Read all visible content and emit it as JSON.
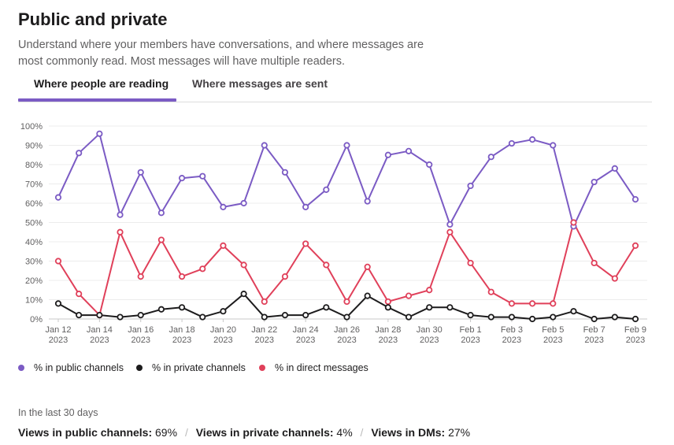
{
  "header": {
    "title": "Public and private",
    "description": "Understand where your members have conversations, and where messages are most commonly read. Most messages will have multiple readers."
  },
  "tabs": [
    {
      "label": "Where people are reading",
      "active": true
    },
    {
      "label": "Where messages are sent",
      "active": false
    }
  ],
  "colors": {
    "accent": "#7b5bc4",
    "public": "#7b5bc4",
    "private": "#1d1c1d",
    "direct": "#e0405a"
  },
  "chart_data": {
    "type": "line",
    "title": "",
    "xlabel": "",
    "ylabel": "",
    "ylim": [
      0,
      100
    ],
    "y_ticks": [
      "0%",
      "10%",
      "20%",
      "30%",
      "40%",
      "50%",
      "60%",
      "70%",
      "80%",
      "90%",
      "100%"
    ],
    "grid": true,
    "legend_position": "bottom",
    "x": [
      "Jan 12 2023",
      "Jan 13 2023",
      "Jan 14 2023",
      "Jan 15 2023",
      "Jan 16 2023",
      "Jan 17 2023",
      "Jan 18 2023",
      "Jan 19 2023",
      "Jan 20 2023",
      "Jan 21 2023",
      "Jan 22 2023",
      "Jan 23 2023",
      "Jan 24 2023",
      "Jan 25 2023",
      "Jan 26 2023",
      "Jan 27 2023",
      "Jan 28 2023",
      "Jan 29 2023",
      "Jan 30 2023",
      "Jan 31 2023",
      "Feb 1 2023",
      "Feb 2 2023",
      "Feb 3 2023",
      "Feb 4 2023",
      "Feb 5 2023",
      "Feb 6 2023",
      "Feb 7 2023",
      "Feb 8 2023",
      "Feb 9 2023"
    ],
    "x_tick_labels": [
      {
        "line1": "Jan 12",
        "line2": "2023"
      },
      {
        "line1": "Jan 14",
        "line2": "2023"
      },
      {
        "line1": "Jan 16",
        "line2": "2023"
      },
      {
        "line1": "Jan 18",
        "line2": "2023"
      },
      {
        "line1": "Jan 20",
        "line2": "2023"
      },
      {
        "line1": "Jan 22",
        "line2": "2023"
      },
      {
        "line1": "Jan 24",
        "line2": "2023"
      },
      {
        "line1": "Jan 26",
        "line2": "2023"
      },
      {
        "line1": "Jan 28",
        "line2": "2023"
      },
      {
        "line1": "Jan 30",
        "line2": "2023"
      },
      {
        "line1": "Feb 1",
        "line2": "2023"
      },
      {
        "line1": "Feb 3",
        "line2": "2023"
      },
      {
        "line1": "Feb 5",
        "line2": "2023"
      },
      {
        "line1": "Feb 7",
        "line2": "2023"
      },
      {
        "line1": "Feb 9",
        "line2": "2023"
      }
    ],
    "series": [
      {
        "name": "% in public channels",
        "color": "#7b5bc4",
        "values": [
          63,
          86,
          96,
          54,
          76,
          55,
          73,
          74,
          58,
          60,
          90,
          76,
          58,
          67,
          90,
          61,
          85,
          87,
          80,
          49,
          69,
          84,
          91,
          93,
          90,
          48,
          71,
          78,
          62
        ]
      },
      {
        "name": "% in private channels",
        "color": "#1d1c1d",
        "values": [
          8,
          2,
          2,
          1,
          2,
          5,
          6,
          1,
          4,
          13,
          1,
          2,
          2,
          6,
          1,
          12,
          6,
          1,
          6,
          6,
          2,
          1,
          1,
          0,
          1,
          4,
          0,
          1,
          0
        ]
      },
      {
        "name": "% in direct messages",
        "color": "#e0405a",
        "values": [
          30,
          13,
          2,
          45,
          22,
          41,
          22,
          26,
          38,
          28,
          9,
          22,
          39,
          28,
          9,
          27,
          9,
          12,
          15,
          45,
          29,
          14,
          8,
          8,
          8,
          50,
          29,
          21,
          38
        ]
      }
    ]
  },
  "footer": {
    "caption": "In the last 30 days",
    "stats": [
      {
        "label": "Views in public channels:",
        "value": "69%"
      },
      {
        "label": "Views in private channels:",
        "value": "4%"
      },
      {
        "label": "Views in DMs:",
        "value": "27%"
      }
    ]
  }
}
